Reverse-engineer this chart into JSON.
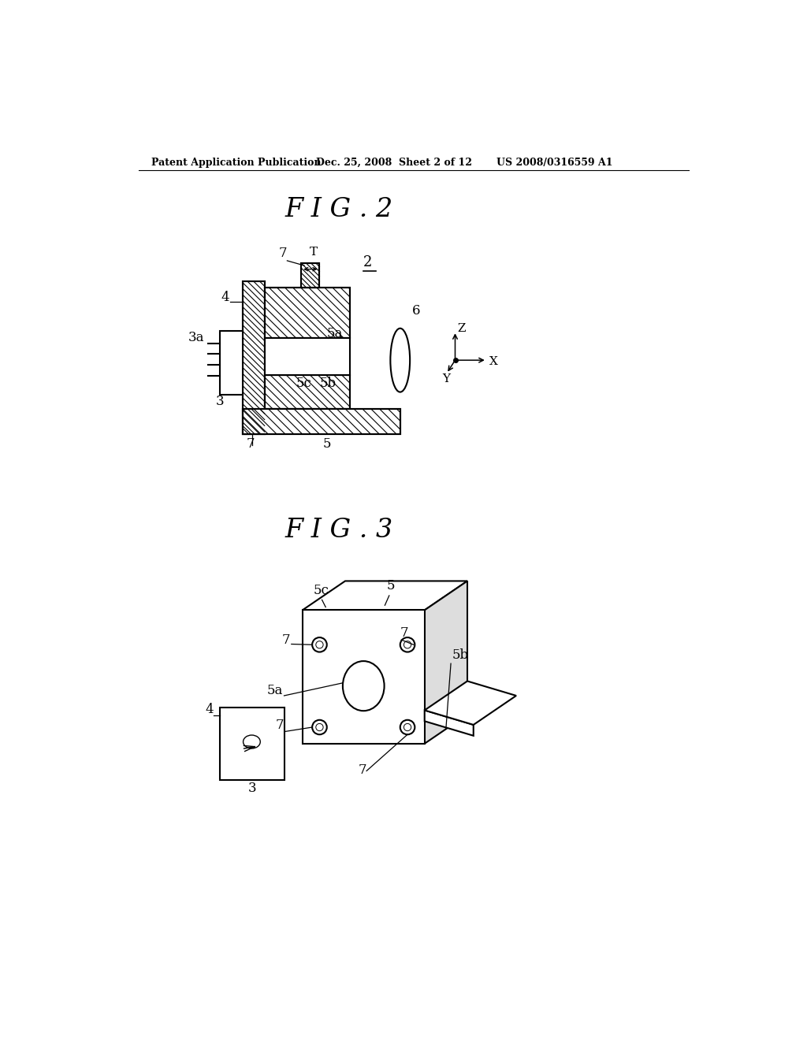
{
  "bg_color": "#ffffff",
  "header_left": "Patent Application Publication",
  "header_mid": "Dec. 25, 2008  Sheet 2 of 12",
  "header_right": "US 2008/0316559 A1",
  "fig2_title": "F I G . 2",
  "fig3_title": "F I G . 3"
}
